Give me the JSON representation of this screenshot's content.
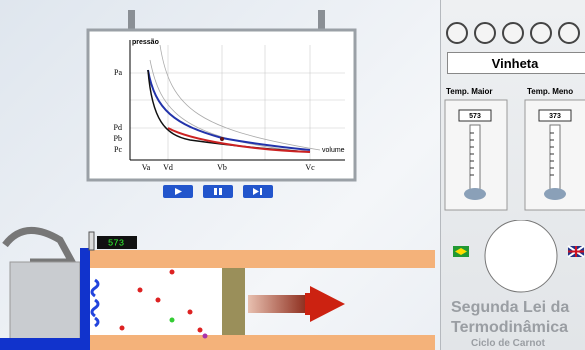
{
  "graph": {
    "y_axis_label": "pressão",
    "x_axis_label": "volume",
    "y_labels": [
      "Pa",
      "Pd",
      "Pb",
      "Pc"
    ],
    "x_labels": [
      "Va",
      "Vd",
      "Vb",
      "Vc"
    ]
  },
  "engine": {
    "temperature_display": "573"
  },
  "panel": {
    "button": "Vinheta",
    "columns": [
      {
        "label": "Temp. Maior",
        "value": "573"
      },
      {
        "label": "Temp. Meno",
        "value": "373"
      }
    ],
    "title": "Segunda Lei da Termodinâmica",
    "subtitle": "Ciclo de Carnot"
  }
}
